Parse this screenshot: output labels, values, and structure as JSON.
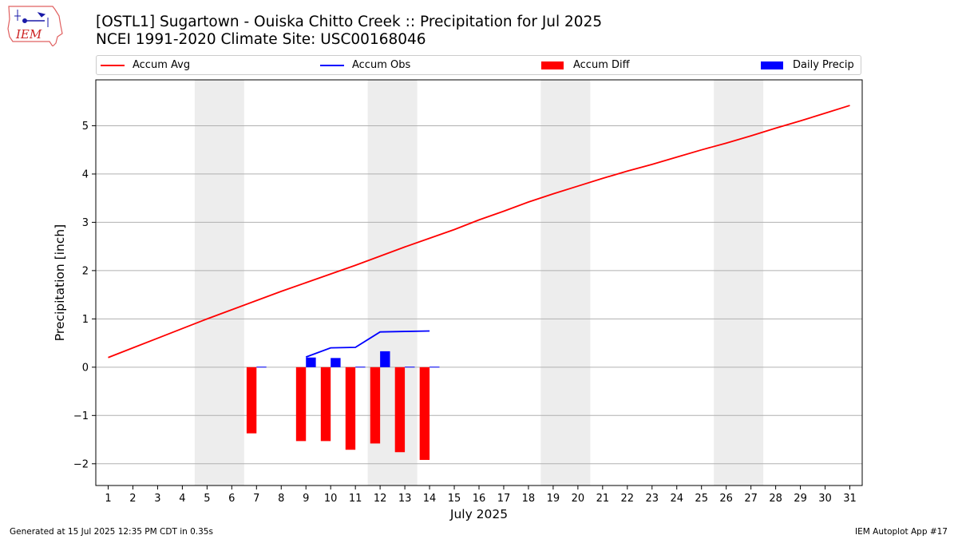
{
  "header": {
    "title_line1": "[OSTL1] Sugartown - Ouiska Chitto Creek :: Precipitation for Jul 2025",
    "title_line2": "NCEI 1991-2020 Climate Site: USC00168046",
    "logo_text": "IEM"
  },
  "legend": {
    "items": [
      {
        "label": "Accum Avg",
        "color": "#ff0000",
        "kind": "line"
      },
      {
        "label": "Accum Obs",
        "color": "#0000ff",
        "kind": "line"
      },
      {
        "label": "Accum Diff",
        "color": "#ff0000",
        "kind": "patch"
      },
      {
        "label": "Daily Precip",
        "color": "#0000ff",
        "kind": "patch"
      }
    ]
  },
  "footer": {
    "left": "Generated at 15 Jul 2025 12:35 PM CDT in 0.35s",
    "right": "IEM Autoplot App #17"
  },
  "chart_data": {
    "type": "bar",
    "xlabel": "July 2025",
    "ylabel": "Precipitation [inch]",
    "xlim": [
      0.5,
      31.5
    ],
    "ylim": [
      -2.45,
      5.95
    ],
    "grid": "horizontal",
    "legend_placement": "top",
    "x_ticks": [
      1,
      2,
      3,
      4,
      5,
      6,
      7,
      8,
      9,
      10,
      11,
      12,
      13,
      14,
      15,
      16,
      17,
      18,
      19,
      20,
      21,
      22,
      23,
      24,
      25,
      26,
      27,
      28,
      29,
      30,
      31
    ],
    "y_ticks": [
      -2,
      -1,
      0,
      1,
      2,
      3,
      4,
      5
    ],
    "y_tick_labels": [
      "−2",
      "−1",
      "0",
      "1",
      "2",
      "3",
      "4",
      "5"
    ],
    "weekend_bands": [
      [
        4.5,
        6.5
      ],
      [
        11.5,
        13.5
      ],
      [
        18.5,
        20.5
      ],
      [
        25.5,
        27.5
      ]
    ],
    "series": [
      {
        "name": "Accum Avg",
        "type": "line",
        "color": "#ff0000",
        "x": [
          1,
          2,
          3,
          4,
          5,
          6,
          7,
          8,
          9,
          10,
          11,
          12,
          13,
          14,
          15,
          16,
          17,
          18,
          19,
          20,
          21,
          22,
          23,
          24,
          25,
          26,
          27,
          28,
          29,
          30,
          31
        ],
        "values": [
          0.2,
          0.4,
          0.6,
          0.8,
          1.0,
          1.19,
          1.38,
          1.57,
          1.75,
          1.93,
          2.11,
          2.3,
          2.49,
          2.67,
          2.85,
          3.05,
          3.23,
          3.42,
          3.59,
          3.75,
          3.91,
          4.06,
          4.2,
          4.35,
          4.5,
          4.64,
          4.79,
          4.95,
          5.1,
          5.26,
          5.42
        ]
      },
      {
        "name": "Accum Obs",
        "type": "line",
        "color": "#0000ff",
        "x": [
          9,
          10,
          11,
          12,
          13,
          14
        ],
        "values": [
          0.21,
          0.4,
          0.41,
          0.73,
          0.74,
          0.75
        ]
      },
      {
        "name": "Accum Diff",
        "type": "bar",
        "color": "#ff0000",
        "x": [
          7,
          9,
          10,
          11,
          12,
          13,
          14
        ],
        "values": [
          -1.37,
          -1.53,
          -1.53,
          -1.71,
          -1.58,
          -1.76,
          -1.92
        ]
      },
      {
        "name": "Daily Precip",
        "type": "bar",
        "color": "#0000ff",
        "x": [
          7,
          9,
          10,
          11,
          12,
          13,
          14
        ],
        "values": [
          0.01,
          0.2,
          0.19,
          0.01,
          0.33,
          0.01,
          0.01
        ]
      }
    ]
  }
}
